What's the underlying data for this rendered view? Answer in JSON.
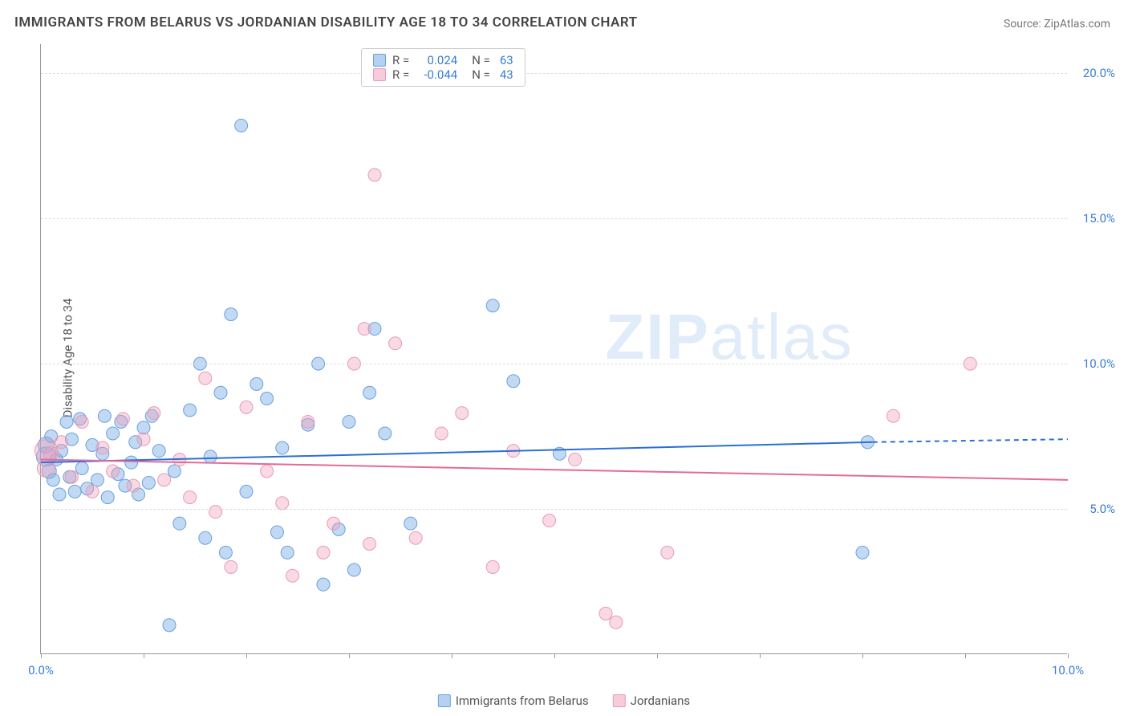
{
  "title": "IMMIGRANTS FROM BELARUS VS JORDANIAN DISABILITY AGE 18 TO 34 CORRELATION CHART",
  "source_label": "Source: ",
  "source_name": "ZipAtlas.com",
  "watermark_bold": "ZIP",
  "watermark_light": "atlas",
  "ylabel": "Disability Age 18 to 34",
  "chart": {
    "type": "scatter",
    "xlim": [
      0,
      10
    ],
    "ylim": [
      0,
      21
    ],
    "x_ticks": [
      0,
      1,
      2,
      3,
      4,
      5,
      6,
      7,
      8,
      9,
      10
    ],
    "x_tick_labels": [
      "0.0%",
      "",
      "",
      "",
      "",
      "",
      "",
      "",
      "",
      "",
      "10.0%"
    ],
    "y_ticks": [
      5,
      10,
      15,
      20
    ],
    "y_tick_labels": [
      "5.0%",
      "10.0%",
      "15.0%",
      "20.0%"
    ],
    "background_color": "#ffffff",
    "grid_color": "#dddddd",
    "point_radius_base": 8,
    "series": [
      {
        "name": "Immigrants from Belarus",
        "color_fill": "rgba(120,170,230,0.45)",
        "color_stroke": "#6aa0dd",
        "r_label": "R = ",
        "r_value": "0.024",
        "n_label": "N = ",
        "n_value": "63",
        "trend": {
          "x1": 0,
          "y1": 6.6,
          "x2": 8.1,
          "y2": 7.3,
          "dash_to_x": 10,
          "dash_to_y": 7.4,
          "color": "#2b6fd6"
        },
        "points": [
          [
            0.05,
            6.8,
            12
          ],
          [
            0.05,
            7.2,
            10
          ],
          [
            0.08,
            6.3,
            9
          ],
          [
            0.1,
            7.5,
            8
          ],
          [
            0.12,
            6.0,
            8
          ],
          [
            0.15,
            6.7,
            8
          ],
          [
            0.18,
            5.5,
            8
          ],
          [
            0.2,
            7.0,
            8
          ],
          [
            0.25,
            8.0,
            8
          ],
          [
            0.28,
            6.1,
            8
          ],
          [
            0.3,
            7.4,
            8
          ],
          [
            0.33,
            5.6,
            8
          ],
          [
            0.38,
            8.1,
            8
          ],
          [
            0.4,
            6.4,
            8
          ],
          [
            0.45,
            5.7,
            8
          ],
          [
            0.5,
            7.2,
            8
          ],
          [
            0.55,
            6.0,
            8
          ],
          [
            0.6,
            6.9,
            8
          ],
          [
            0.62,
            8.2,
            8
          ],
          [
            0.65,
            5.4,
            8
          ],
          [
            0.7,
            7.6,
            8
          ],
          [
            0.75,
            6.2,
            8
          ],
          [
            0.78,
            8.0,
            8
          ],
          [
            0.82,
            5.8,
            8
          ],
          [
            0.88,
            6.6,
            8
          ],
          [
            0.92,
            7.3,
            8
          ],
          [
            0.95,
            5.5,
            8
          ],
          [
            1.0,
            7.8,
            8
          ],
          [
            1.05,
            5.9,
            8
          ],
          [
            1.08,
            8.2,
            8
          ],
          [
            1.15,
            7.0,
            8
          ],
          [
            1.25,
            1.0,
            8
          ],
          [
            1.3,
            6.3,
            8
          ],
          [
            1.35,
            4.5,
            8
          ],
          [
            1.45,
            8.4,
            8
          ],
          [
            1.55,
            10.0,
            8
          ],
          [
            1.6,
            4.0,
            8
          ],
          [
            1.65,
            6.8,
            8
          ],
          [
            1.75,
            9.0,
            8
          ],
          [
            1.8,
            3.5,
            8
          ],
          [
            1.85,
            11.7,
            8
          ],
          [
            1.95,
            18.2,
            8
          ],
          [
            2.0,
            5.6,
            8
          ],
          [
            2.1,
            9.3,
            8
          ],
          [
            2.2,
            8.8,
            8
          ],
          [
            2.3,
            4.2,
            8
          ],
          [
            2.35,
            7.1,
            8
          ],
          [
            2.4,
            3.5,
            8
          ],
          [
            2.6,
            7.9,
            8
          ],
          [
            2.7,
            10.0,
            8
          ],
          [
            2.75,
            2.4,
            8
          ],
          [
            2.9,
            4.3,
            8
          ],
          [
            3.0,
            8.0,
            8
          ],
          [
            3.05,
            2.9,
            8
          ],
          [
            3.2,
            9.0,
            8
          ],
          [
            3.25,
            11.2,
            8
          ],
          [
            3.35,
            7.6,
            8
          ],
          [
            3.6,
            4.5,
            8
          ],
          [
            4.4,
            12.0,
            8
          ],
          [
            4.6,
            9.4,
            8
          ],
          [
            5.05,
            6.9,
            8
          ],
          [
            8.0,
            3.5,
            8
          ],
          [
            8.05,
            7.3,
            8
          ]
        ]
      },
      {
        "name": "Jordanians",
        "color_fill": "rgba(240,160,185,0.40)",
        "color_stroke": "#e89bb5",
        "r_label": "R = ",
        "r_value": "-0.044",
        "n_label": "N = ",
        "n_value": "43",
        "trend": {
          "x1": 0,
          "y1": 6.7,
          "x2": 10,
          "y2": 6.0,
          "color": "#e36a9a"
        },
        "points": [
          [
            0.05,
            7.0,
            14
          ],
          [
            0.05,
            6.4,
            11
          ],
          [
            0.1,
            6.9,
            9
          ],
          [
            0.2,
            7.3,
            8
          ],
          [
            0.3,
            6.1,
            8
          ],
          [
            0.4,
            8.0,
            8
          ],
          [
            0.5,
            5.6,
            8
          ],
          [
            0.6,
            7.1,
            8
          ],
          [
            0.7,
            6.3,
            8
          ],
          [
            0.8,
            8.1,
            8
          ],
          [
            0.9,
            5.8,
            8
          ],
          [
            1.0,
            7.4,
            8
          ],
          [
            1.1,
            8.3,
            8
          ],
          [
            1.2,
            6.0,
            8
          ],
          [
            1.35,
            6.7,
            8
          ],
          [
            1.45,
            5.4,
            8
          ],
          [
            1.6,
            9.5,
            8
          ],
          [
            1.7,
            4.9,
            8
          ],
          [
            1.85,
            3.0,
            8
          ],
          [
            2.0,
            8.5,
            8
          ],
          [
            2.2,
            6.3,
            8
          ],
          [
            2.35,
            5.2,
            8
          ],
          [
            2.45,
            2.7,
            8
          ],
          [
            2.6,
            8.0,
            8
          ],
          [
            2.75,
            3.5,
            8
          ],
          [
            2.85,
            4.5,
            8
          ],
          [
            3.05,
            10.0,
            8
          ],
          [
            3.15,
            11.2,
            8
          ],
          [
            3.2,
            3.8,
            8
          ],
          [
            3.25,
            16.5,
            8
          ],
          [
            3.45,
            10.7,
            8
          ],
          [
            3.65,
            4.0,
            8
          ],
          [
            3.9,
            7.6,
            8
          ],
          [
            4.1,
            8.3,
            8
          ],
          [
            4.4,
            3.0,
            8
          ],
          [
            4.6,
            7.0,
            8
          ],
          [
            4.95,
            4.6,
            8
          ],
          [
            5.5,
            1.4,
            8
          ],
          [
            5.6,
            1.1,
            8
          ],
          [
            6.1,
            3.5,
            8
          ],
          [
            8.3,
            8.2,
            8
          ],
          [
            9.05,
            10.0,
            8
          ],
          [
            5.2,
            6.7,
            8
          ]
        ]
      }
    ]
  }
}
